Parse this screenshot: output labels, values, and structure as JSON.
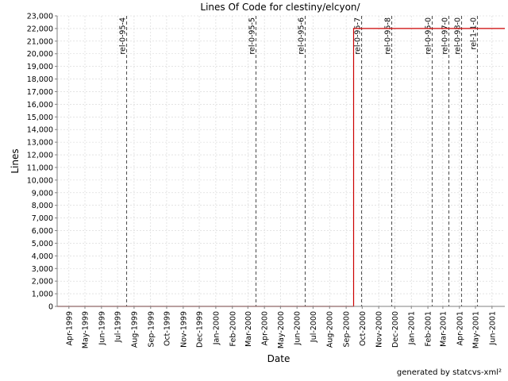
{
  "chart_data": {
    "type": "line",
    "title": "Lines Of Code for clestiny/elcyon/",
    "xlabel": "Date",
    "ylabel": "Lines",
    "x_axis_type": "date",
    "xlim": [
      "1999-03-10",
      "2001-06-25"
    ],
    "ylim": [
      0,
      23000
    ],
    "y_ticks": [
      0,
      1000,
      2000,
      3000,
      4000,
      5000,
      6000,
      7000,
      8000,
      9000,
      10000,
      11000,
      12000,
      13000,
      14000,
      15000,
      16000,
      17000,
      18000,
      19000,
      20000,
      21000,
      22000,
      23000
    ],
    "y_tick_labels": [
      "0",
      "1,000",
      "2,000",
      "3,000",
      "4,000",
      "5,000",
      "6,000",
      "7,000",
      "8,000",
      "9,000",
      "10,000",
      "11,000",
      "12,000",
      "13,000",
      "14,000",
      "15,000",
      "16,000",
      "17,000",
      "18,000",
      "19,000",
      "20,000",
      "21,000",
      "22,000",
      "23,000"
    ],
    "x_ticks": [
      "1999-04-01",
      "1999-05-01",
      "1999-06-01",
      "1999-07-01",
      "1999-08-01",
      "1999-09-01",
      "1999-10-01",
      "1999-11-01",
      "1999-12-01",
      "2000-01-01",
      "2000-02-01",
      "2000-03-01",
      "2000-04-01",
      "2000-05-01",
      "2000-06-01",
      "2000-07-01",
      "2000-08-01",
      "2000-09-01",
      "2000-10-01",
      "2000-11-01",
      "2000-12-01",
      "2001-01-01",
      "2001-02-01",
      "2001-03-01",
      "2001-04-01",
      "2001-05-01",
      "2001-06-01"
    ],
    "x_tick_labels": [
      "Apr-1999",
      "May-1999",
      "Jun-1999",
      "Jul-1999",
      "Aug-1999",
      "Sep-1999",
      "Oct-1999",
      "Nov-1999",
      "Dec-1999",
      "Jan-2000",
      "Feb-2000",
      "Mar-2000",
      "Apr-2000",
      "May-2000",
      "Jun-2000",
      "Jul-2000",
      "Aug-2000",
      "Sep-2000",
      "Oct-2000",
      "Nov-2000",
      "Dec-2000",
      "Jan-2001",
      "Feb-2001",
      "Mar-2001",
      "Apr-2001",
      "May-2001",
      "Jun-2001"
    ],
    "grid": true,
    "series": [
      {
        "color": "#cc0000",
        "step": true,
        "x": [
          "1999-03-10",
          "2000-09-15",
          "2000-09-15",
          "2001-06-25"
        ],
        "y": [
          0,
          0,
          22000,
          22000
        ]
      }
    ],
    "annotations": [
      {
        "label": "rel-0-95-4",
        "x": "1999-07-18"
      },
      {
        "label": "rel-0-95-5",
        "x": "2000-03-15"
      },
      {
        "label": "rel-0-95-6",
        "x": "2000-06-15"
      },
      {
        "label": "rel-0-95-7",
        "x": "2000-09-29"
      },
      {
        "label": "rel-0-95-8",
        "x": "2000-11-24"
      },
      {
        "label": "rel-0-95-0",
        "x": "2001-02-08"
      },
      {
        "label": "rel-0-97-0",
        "x": "2001-03-12"
      },
      {
        "label": "rel-0-98-0",
        "x": "2001-04-05"
      },
      {
        "label": "rel-1-1-0",
        "x": "2001-05-04"
      }
    ]
  },
  "footer": {
    "text": "generated by statcvs-xml²"
  }
}
